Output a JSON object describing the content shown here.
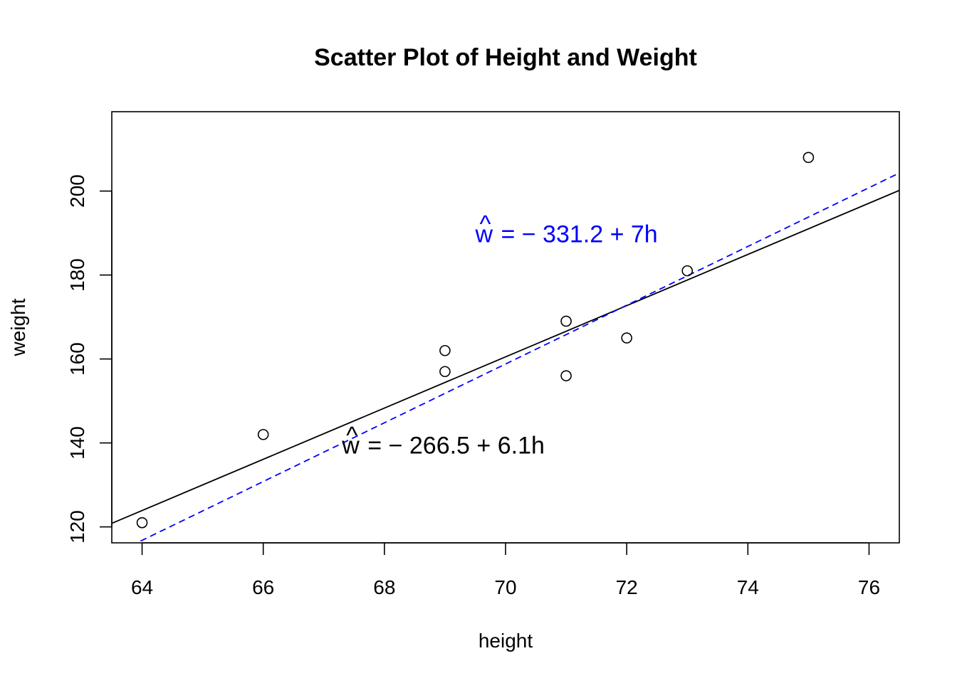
{
  "chart_data": {
    "type": "scatter",
    "title": "Scatter Plot of Height and Weight",
    "xlabel": "height",
    "ylabel": "weight",
    "xlim": [
      63.5,
      76.5
    ],
    "ylim": [
      116.2,
      218.9
    ],
    "x_ticks": [
      64,
      66,
      68,
      70,
      72,
      74,
      76
    ],
    "y_ticks": [
      120,
      140,
      160,
      180,
      200
    ],
    "x_tick_labels": [
      "64",
      "66",
      "68",
      "70",
      "72",
      "74",
      "76"
    ],
    "y_tick_labels": [
      "120",
      "140",
      "160",
      "180",
      "200"
    ],
    "grid": false,
    "points": [
      {
        "x": 64,
        "y": 121
      },
      {
        "x": 66,
        "y": 142
      },
      {
        "x": 69,
        "y": 162
      },
      {
        "x": 69,
        "y": 157
      },
      {
        "x": 71,
        "y": 169
      },
      {
        "x": 71,
        "y": 156
      },
      {
        "x": 72,
        "y": 165
      },
      {
        "x": 73,
        "y": 181
      },
      {
        "x": 75,
        "y": 208
      }
    ],
    "lines": [
      {
        "intercept": -266.5,
        "slope": 6.1,
        "color": "#000000",
        "style": "solid"
      },
      {
        "intercept": -331.2,
        "slope": 7,
        "color": "#0000ff",
        "style": "dashed"
      }
    ],
    "annotations": [
      {
        "hat": "^",
        "lhs": "w",
        "rhs": "= − 266.5 + 6.1h",
        "x": 67.3,
        "y": 137.5,
        "color": "#000000"
      },
      {
        "hat": "^",
        "lhs": "w",
        "rhs": "= − 331.2 + 7h",
        "x": 69.5,
        "y": 187.8,
        "color": "#0000ff"
      }
    ]
  }
}
